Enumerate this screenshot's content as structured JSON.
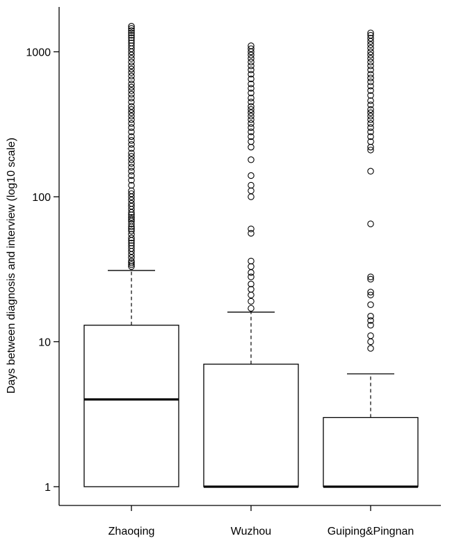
{
  "chart_data": {
    "type": "box",
    "title": "",
    "xlabel": "",
    "ylabel": "Days between diagnosis and interview (log10 scale)",
    "yscale": "log10",
    "ylim": [
      1,
      1550
    ],
    "yticks": [
      1,
      10,
      100,
      1000
    ],
    "ytick_labels": [
      "1",
      "10",
      "100",
      "1000"
    ],
    "grid": false,
    "legend": "none",
    "colors": {
      "box_fill": "#ffffff",
      "stroke": "#000000"
    },
    "categories": [
      "Zhaoqing",
      "Wuzhou",
      "Guiping&Pingnan"
    ],
    "boxes": [
      {
        "name": "Zhaoqing",
        "min": 1,
        "q1": 1,
        "median": 4,
        "q3": 13,
        "whisker_high": 31,
        "outliers": [
          33,
          34,
          35,
          36,
          38,
          40,
          42,
          44,
          46,
          48,
          50,
          52,
          55,
          58,
          60,
          62,
          65,
          68,
          70,
          72,
          75,
          78,
          82,
          86,
          90,
          95,
          100,
          105,
          110,
          120,
          130,
          140,
          150,
          160,
          170,
          180,
          190,
          200,
          215,
          230,
          245,
          260,
          280,
          300,
          320,
          340,
          360,
          380,
          400,
          420,
          450,
          480,
          510,
          540,
          570,
          600,
          640,
          680,
          720,
          760,
          800,
          850,
          900,
          950,
          1000,
          1050,
          1100,
          1150,
          1200,
          1250,
          1300,
          1350,
          1400,
          1450,
          1500
        ]
      },
      {
        "name": "Wuzhou",
        "min": 1,
        "q1": 1,
        "median": 1,
        "q3": 7,
        "whisker_high": 16,
        "outliers": [
          17,
          19,
          21,
          23,
          25,
          28,
          30,
          33,
          36,
          56,
          60,
          100,
          110,
          120,
          140,
          180,
          220,
          240,
          260,
          280,
          300,
          320,
          340,
          360,
          380,
          400,
          420,
          450,
          480,
          520,
          560,
          600,
          650,
          700,
          750,
          800,
          850,
          900,
          950,
          1000,
          1050,
          1100
        ]
      },
      {
        "name": "Guiping&Pingnan",
        "min": 1,
        "q1": 1,
        "median": 1,
        "q3": 3,
        "whisker_high": 6,
        "outliers": [
          9,
          10,
          11,
          13,
          14,
          15,
          18,
          21,
          22,
          27,
          28,
          65,
          150,
          210,
          220,
          240,
          260,
          280,
          300,
          320,
          340,
          360,
          380,
          400,
          430,
          460,
          500,
          540,
          580,
          620,
          660,
          700,
          750,
          800,
          850,
          900,
          950,
          1000,
          1060,
          1120,
          1180,
          1240,
          1300,
          1350
        ]
      }
    ]
  }
}
